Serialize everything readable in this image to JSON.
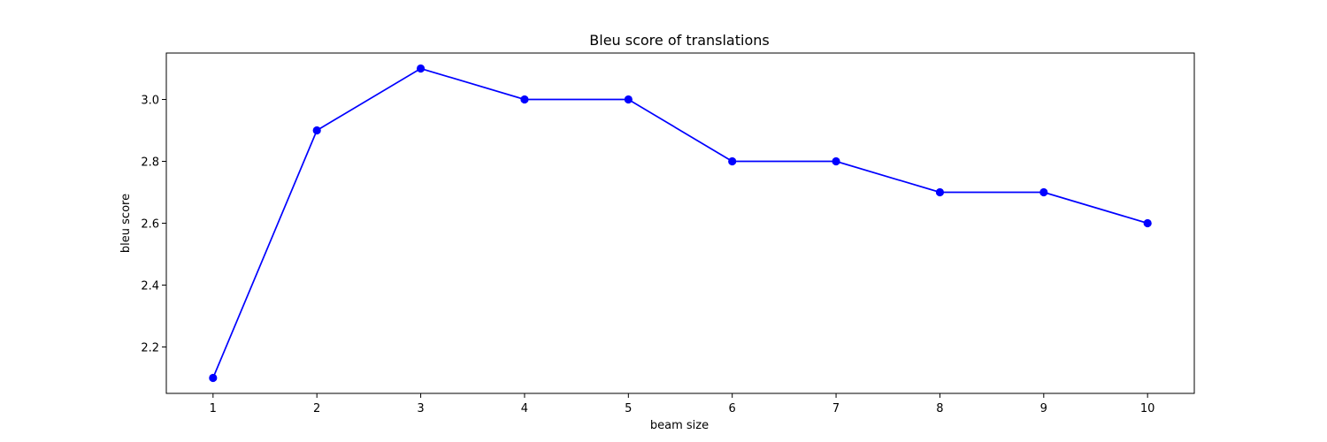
{
  "chart_data": {
    "type": "line",
    "title": "Bleu score of translations",
    "xlabel": "beam size",
    "ylabel": "bleu score",
    "x": [
      1,
      2,
      3,
      4,
      5,
      6,
      7,
      8,
      9,
      10
    ],
    "series": [
      {
        "values": [
          2.1,
          2.9,
          3.1,
          3.0,
          3.0,
          2.8,
          2.8,
          2.7,
          2.7,
          2.6
        ],
        "color": "#0000ff",
        "marker": "circle"
      }
    ],
    "xticks": [
      "1",
      "2",
      "3",
      "4",
      "5",
      "6",
      "7",
      "8",
      "9",
      "10"
    ],
    "yticks": [
      "2.2",
      "2.4",
      "2.6",
      "2.8",
      "3.0"
    ],
    "xlim": [
      0.55,
      10.45
    ],
    "ylim": [
      2.05,
      3.15
    ],
    "grid": false
  }
}
